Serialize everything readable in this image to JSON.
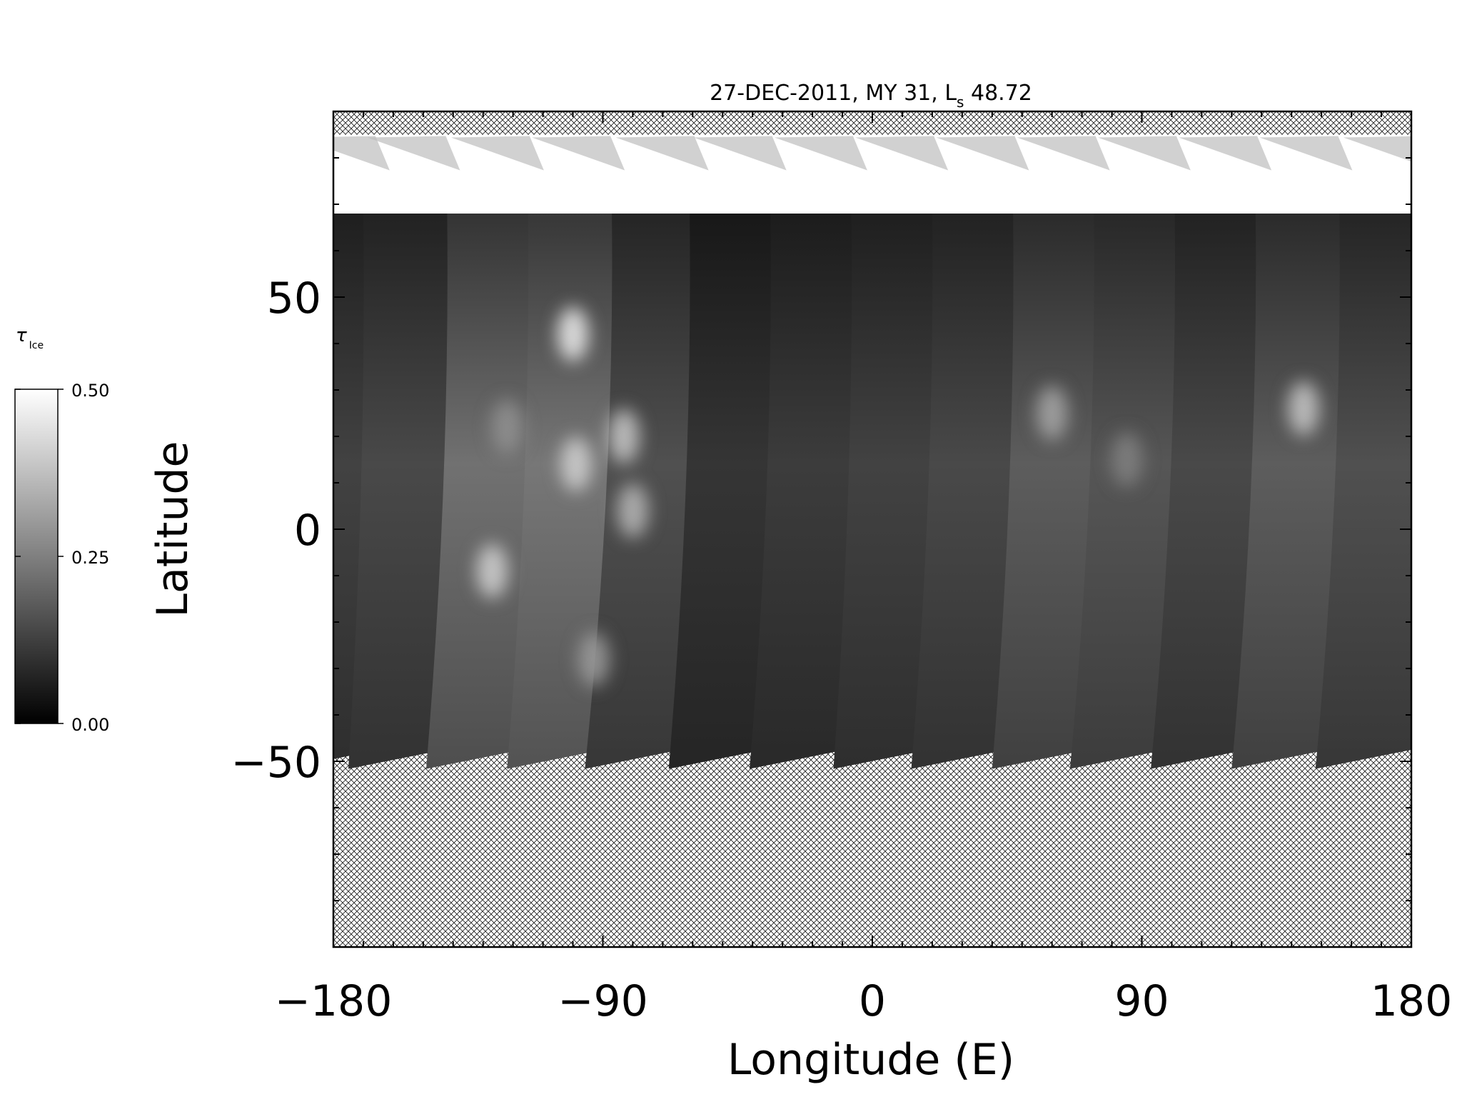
{
  "chart_data": {
    "type": "heatmap",
    "title": "27-DEC-2011, MY 31,  L",
    "title_subscript": "s",
    "title_suffix": " 48.72",
    "xlabel": "Longitude (E)",
    "ylabel": "Latitude",
    "xlim": [
      -180,
      180
    ],
    "ylim": [
      -90,
      90
    ],
    "xticks": [
      -180,
      -90,
      0,
      90,
      180
    ],
    "xtick_labels": [
      "−180",
      "−90",
      "0",
      "90",
      "180"
    ],
    "yticks": [
      -50,
      0,
      50
    ],
    "ytick_labels": [
      "−50",
      "0",
      "50"
    ],
    "x_minor_step": 10,
    "y_minor_step": 10,
    "no_data_fill": "crosshatch",
    "colorbar": {
      "label": "τ",
      "label_subscript": "Ice",
      "range": [
        0.0,
        0.5
      ],
      "ticks": [
        0.0,
        0.25,
        0.5
      ],
      "tick_labels": [
        "0.00",
        "0.25",
        "0.50"
      ],
      "colormap": "grayscale",
      "low_color": "#000000",
      "high_color": "#ffffff"
    },
    "polar_cap": {
      "lat_min": 68,
      "lat_max": 85,
      "value": 0.5
    },
    "swath_coverage": {
      "lat_top": 68,
      "lat_bottom": -47
    },
    "swaths": [
      {
        "lon_top": -175.5,
        "lon_bottom": -178.5,
        "base_value": 0.1
      },
      {
        "lon_top": -152,
        "lon_bottom": -157,
        "base_value": 0.11
      },
      {
        "lon_top": -124,
        "lon_bottom": -131,
        "base_value": 0.17
      },
      {
        "lon_top": -97,
        "lon_bottom": -104,
        "base_value": 0.18
      },
      {
        "lon_top": -69,
        "lon_bottom": -78,
        "base_value": 0.12
      },
      {
        "lon_top": -43,
        "lon_bottom": -50,
        "base_value": 0.08
      },
      {
        "lon_top": -16,
        "lon_bottom": -23,
        "base_value": 0.09
      },
      {
        "lon_top": 11,
        "lon_bottom": 5,
        "base_value": 0.1
      },
      {
        "lon_top": 38,
        "lon_bottom": 31,
        "base_value": 0.11
      },
      {
        "lon_top": 65,
        "lon_bottom": 58,
        "base_value": 0.14
      },
      {
        "lon_top": 92,
        "lon_bottom": 84,
        "base_value": 0.13
      },
      {
        "lon_top": 119,
        "lon_bottom": 111,
        "base_value": 0.11
      },
      {
        "lon_top": 146,
        "lon_bottom": 138,
        "base_value": 0.14
      },
      {
        "lon_top": 174,
        "lon_bottom": 166,
        "base_value": 0.12
      }
    ],
    "cloud_patches": [
      {
        "lon": -100,
        "lat": 42,
        "value": 0.45
      },
      {
        "lon": -83,
        "lat": 20,
        "value": 0.38
      },
      {
        "lon": -99,
        "lat": 14,
        "value": 0.4
      },
      {
        "lon": -127,
        "lat": -9,
        "value": 0.4
      },
      {
        "lon": -80,
        "lat": 4,
        "value": 0.35
      },
      {
        "lon": -122,
        "lat": 22,
        "value": 0.28
      },
      {
        "lon": -93,
        "lat": -28,
        "value": 0.3
      },
      {
        "lon": 60,
        "lat": 25,
        "value": 0.32
      },
      {
        "lon": 144,
        "lat": 26,
        "value": 0.38
      },
      {
        "lon": 85,
        "lat": 15,
        "value": 0.25
      }
    ]
  }
}
